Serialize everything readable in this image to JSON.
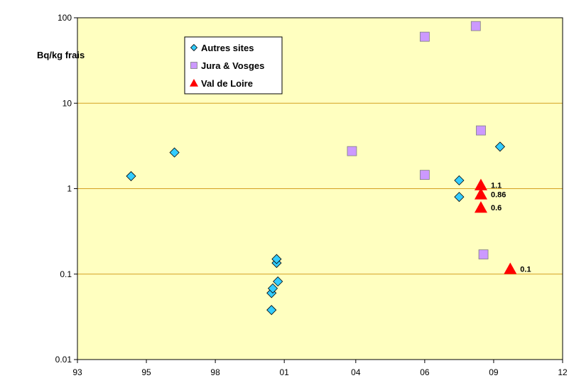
{
  "chart_data": {
    "type": "scatter",
    "ylabel": "Bq/kg frais",
    "y_scale": "log",
    "ylim": [
      0.01,
      100
    ],
    "y_ticks": [
      "0.01",
      "0.1",
      "1",
      "10",
      "100"
    ],
    "y_tick_values": [
      0.01,
      0.1,
      1,
      10,
      100
    ],
    "xlim": [
      1993,
      2012
    ],
    "x_ticks": [
      "93",
      "95",
      "98",
      "01",
      "04",
      "06",
      "09",
      "12"
    ],
    "x_tick_values": [
      1993,
      1995.7,
      1998.4,
      2001.1,
      2003.9,
      2006.6,
      2009.3,
      2012
    ],
    "grid": "horizontal",
    "legend_position": "top-left",
    "colors": {
      "plot_background": "#FFFFC0",
      "gridline": "#D4A020",
      "autres_sites": "#33CCFF",
      "jura_vosges": "#CC99FF",
      "val_de_loire": "#FF0000"
    },
    "series": [
      {
        "name": "Autres sites",
        "marker": "diamond",
        "points": [
          {
            "x": 1995.1,
            "y": 1.4
          },
          {
            "x": 1996.8,
            "y": 2.65
          },
          {
            "x": 2000.6,
            "y": 0.038
          },
          {
            "x": 2000.6,
            "y": 0.06
          },
          {
            "x": 2000.65,
            "y": 0.068
          },
          {
            "x": 2000.85,
            "y": 0.082
          },
          {
            "x": 2000.8,
            "y": 0.135
          },
          {
            "x": 2000.8,
            "y": 0.15
          },
          {
            "x": 2007.95,
            "y": 1.25
          },
          {
            "x": 2007.95,
            "y": 0.8
          },
          {
            "x": 2009.55,
            "y": 3.1
          }
        ]
      },
      {
        "name": "Jura & Vosges",
        "marker": "square",
        "points": [
          {
            "x": 2003.75,
            "y": 2.75
          },
          {
            "x": 2006.6,
            "y": 1.45
          },
          {
            "x": 2006.6,
            "y": 60
          },
          {
            "x": 2008.6,
            "y": 80
          },
          {
            "x": 2008.8,
            "y": 4.8
          },
          {
            "x": 2008.9,
            "y": 0.17
          }
        ]
      },
      {
        "name": "Val de Loire",
        "marker": "triangle",
        "points": [
          {
            "x": 2008.8,
            "y": 1.1,
            "label": "1.1"
          },
          {
            "x": 2008.8,
            "y": 0.86,
            "label": "0.86"
          },
          {
            "x": 2008.8,
            "y": 0.6,
            "label": "0.6"
          },
          {
            "x": 2009.95,
            "y": 0.115,
            "label": "0.1"
          }
        ]
      }
    ]
  }
}
